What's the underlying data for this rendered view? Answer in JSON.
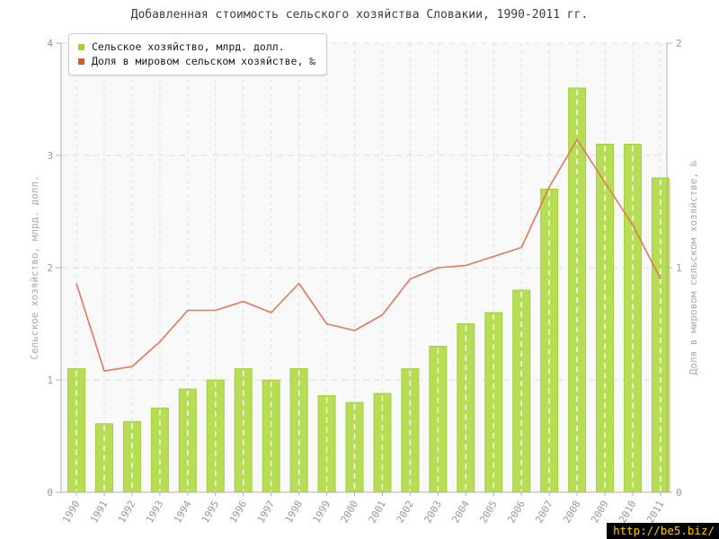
{
  "title": "Добавленная стоимость сельского хозяйства Словакии, 1990-2011 гг.",
  "legend": {
    "items": [
      {
        "label": "Сельское хозяйство, млрд. долл.",
        "color": "#a7d41e"
      },
      {
        "label": "Доля в мировом сельском хозяйстве, ‰",
        "color": "#e05a1e"
      }
    ]
  },
  "footer": {
    "url_label": "http://be5.biz/"
  },
  "colors": {
    "bar_fill": "#b7dd55",
    "bar_stroke": "#a6ce3f",
    "bar_center_dash": "#ffffff",
    "line": "#e1785c",
    "axis": "#b0b0b0",
    "tick_label": "#999999",
    "axis_title": "#aaaaaa",
    "grid": "#e0e0e0",
    "plot_bg": "#f9f9f9"
  },
  "chart_data": {
    "type": "bar+line",
    "title": "Добавленная стоимость сельского хозяйства Словакии, 1990-2011 гг.",
    "categories": [
      "1990",
      "1991",
      "1992",
      "1993",
      "1994",
      "1995",
      "1996",
      "1997",
      "1998",
      "1999",
      "2000",
      "2001",
      "2002",
      "2003",
      "2004",
      "2005",
      "2006",
      "2007",
      "2008",
      "2009",
      "2010",
      "2011"
    ],
    "series": [
      {
        "name": "Сельское хозяйство, млрд. долл.",
        "type": "bar",
        "axis": "left",
        "values": [
          1.1,
          0.61,
          0.63,
          0.75,
          0.92,
          1.0,
          1.1,
          1.0,
          1.1,
          0.86,
          0.8,
          0.88,
          1.1,
          1.3,
          1.5,
          1.6,
          1.8,
          2.7,
          3.6,
          3.1,
          3.1,
          2.8
        ]
      },
      {
        "name": "Доля в мировом сельском хозяйстве, ‰",
        "type": "line",
        "axis": "right",
        "values": [
          0.93,
          0.54,
          0.56,
          0.67,
          0.81,
          0.81,
          0.85,
          0.8,
          0.93,
          0.75,
          0.72,
          0.79,
          0.95,
          1.0,
          1.01,
          1.05,
          1.09,
          1.36,
          1.57,
          1.38,
          1.19,
          0.95
        ]
      }
    ],
    "ylabel_left": "Сельское хозяйство, млрд. долл.",
    "ylabel_right": "Доля в мировом сельском хозяйстве, ‰",
    "ylim_left": [
      0,
      4
    ],
    "ylim_right": [
      0,
      2
    ],
    "yticks_left": [
      0,
      1,
      2,
      3,
      4
    ],
    "yticks_right": [
      0,
      1,
      2
    ],
    "grid": true,
    "legend_position": "top-left"
  }
}
